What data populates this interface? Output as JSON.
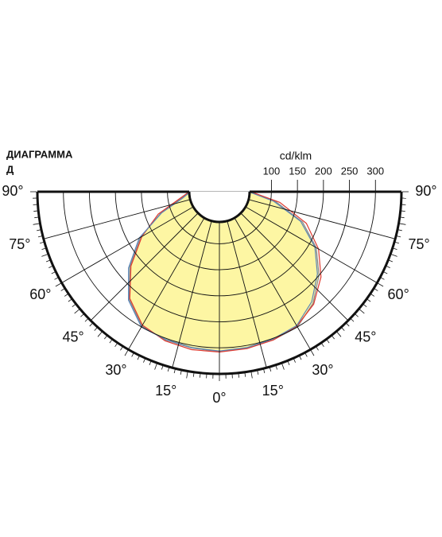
{
  "chart_data": {
    "type": "polar",
    "title": "ДИАГРАММА",
    "subtitle": "Д",
    "radial_unit": "cd/klm",
    "rlim": [
      0,
      350
    ],
    "rticks": [
      100,
      150,
      200,
      250,
      300
    ],
    "angle_ticks": [
      {
        "value": -90,
        "label": "90°"
      },
      {
        "value": -75,
        "label": "75°"
      },
      {
        "value": -60,
        "label": "60°"
      },
      {
        "value": -45,
        "label": "45°"
      },
      {
        "value": -30,
        "label": "30°"
      },
      {
        "value": -15,
        "label": "15°"
      },
      {
        "value": 0,
        "label": "0°"
      },
      {
        "value": 15,
        "label": "15°"
      },
      {
        "value": 30,
        "label": "30°"
      },
      {
        "value": 45,
        "label": "45°"
      },
      {
        "value": 60,
        "label": "60°"
      },
      {
        "value": 75,
        "label": "75°"
      },
      {
        "value": 90,
        "label": "90°"
      }
    ],
    "x": [
      -90,
      -80,
      -70,
      -60,
      -50,
      -40,
      -30,
      -20,
      -10,
      0,
      10,
      20,
      30,
      40,
      50,
      60,
      70,
      80,
      90
    ],
    "series": [
      {
        "color": "#fdf6a3",
        "values": [
          58,
          75,
          120,
          175,
          225,
          270,
          298,
          303,
          305,
          307,
          305,
          303,
          300,
          280,
          250,
          215,
          170,
          110,
          58
        ]
      },
      {
        "color": "#e03a2f",
        "values": [
          58,
          78,
          125,
          172,
          222,
          268,
          296,
          305,
          308,
          308,
          306,
          303,
          298,
          282,
          255,
          220,
          178,
          118,
          60
        ]
      },
      {
        "color": "#5b86b8",
        "values": [
          56,
          72,
          118,
          178,
          228,
          272,
          300,
          302,
          304,
          306,
          304,
          301,
          297,
          276,
          246,
          212,
          166,
          106,
          56
        ]
      }
    ]
  }
}
